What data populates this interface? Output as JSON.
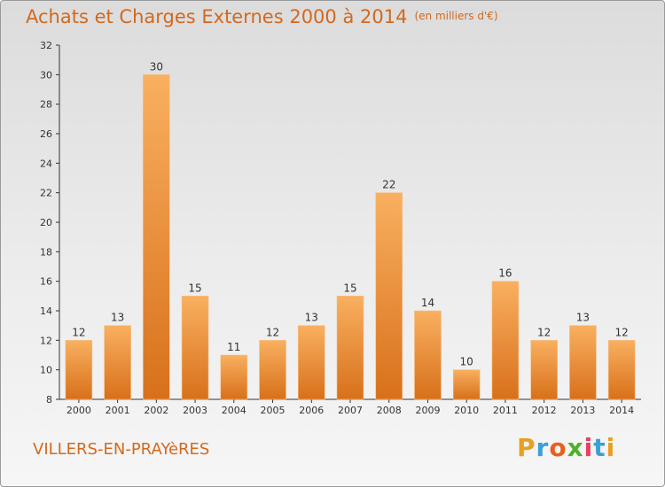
{
  "header": {
    "title": "Achats et Charges Externes 2000 à 2014",
    "unit": "(en milliers d'€)"
  },
  "footer": {
    "location": "VILLERS-EN-PRAYèRES",
    "logo_letters": [
      {
        "ch": "P",
        "color": "#e8a020"
      },
      {
        "ch": "r",
        "color": "#3aa0d8"
      },
      {
        "ch": "o",
        "color": "#e86020"
      },
      {
        "ch": "x",
        "color": "#50b030"
      },
      {
        "ch": "i",
        "color": "#e84060"
      },
      {
        "ch": "t",
        "color": "#3aa0d8"
      },
      {
        "ch": "i",
        "color": "#e8a020"
      }
    ]
  },
  "colors": {
    "bar": "#f08a30",
    "bar_light": "#f9b468",
    "accent": "#d2691e"
  },
  "chart_data": {
    "type": "bar",
    "categories": [
      "2000",
      "2001",
      "2002",
      "2003",
      "2004",
      "2005",
      "2006",
      "2007",
      "2008",
      "2009",
      "2010",
      "2011",
      "2012",
      "2013",
      "2014"
    ],
    "values": [
      12,
      13,
      30,
      15,
      11,
      12,
      13,
      15,
      22,
      14,
      10,
      16,
      12,
      13,
      12
    ],
    "title": "Achats et Charges Externes 2000 à 2014",
    "xlabel": "",
    "ylabel": "",
    "ylim": [
      8,
      32
    ],
    "yticks": [
      8,
      10,
      12,
      14,
      16,
      18,
      20,
      22,
      24,
      26,
      28,
      30,
      32
    ],
    "grid": false,
    "data_labels": true
  }
}
